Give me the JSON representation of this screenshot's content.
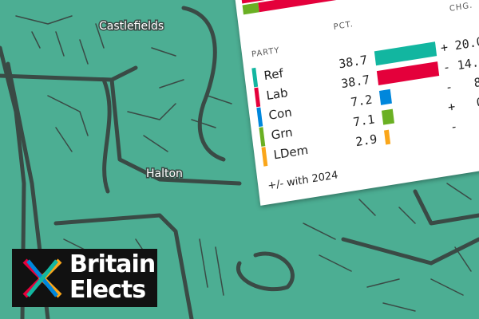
{
  "map": {
    "places": [
      "Castlefields",
      "Halton"
    ]
  },
  "card": {
    "headers": {
      "party": "PARTY",
      "pct": "PCT.",
      "chg": "CHG."
    },
    "rows": [
      {
        "party": "Ref",
        "pct": "38.7",
        "pct_value": 38.7,
        "chg": "+ 20.0",
        "color": "#12b6a0"
      },
      {
        "party": "Lab",
        "pct": "38.7",
        "pct_value": 38.7,
        "chg": "- 14.",
        "color": "#e4003b"
      },
      {
        "party": "Con",
        "pct": "7.2",
        "pct_value": 7.2,
        "chg": "-   8",
        "color": "#0087dc"
      },
      {
        "party": "Grn",
        "pct": "7.1",
        "pct_value": 7.1,
        "chg": "+   0",
        "color": "#6ab023"
      },
      {
        "party": "LDem",
        "pct": "2.9",
        "pct_value": 2.9,
        "chg": "-",
        "color": "#faa61a"
      }
    ],
    "footer": "+/- with 2024"
  },
  "logo": {
    "line1": "Britain",
    "line2": "Elects"
  }
}
